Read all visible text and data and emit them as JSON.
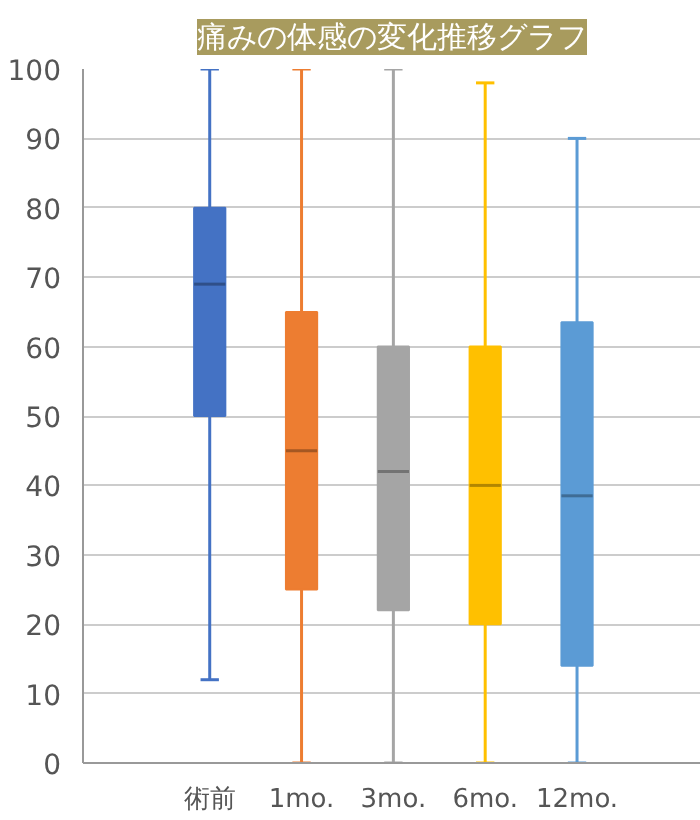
{
  "chart_data": {
    "type": "box",
    "title": "痛みの体感の変化推移グラフ",
    "categories": [
      "術前",
      "1mo.",
      "3mo.",
      "6mo.",
      "12mo."
    ],
    "colors": [
      "#4472c4",
      "#ed7d31",
      "#a5a5a5",
      "#ffc000",
      "#5b9bd5"
    ],
    "boxes": [
      {
        "low": 12,
        "q1": 50,
        "median": 69,
        "q3": 80,
        "high": 100
      },
      {
        "low": 0,
        "q1": 25,
        "median": 45,
        "q3": 65,
        "high": 100
      },
      {
        "low": 0,
        "q1": 22,
        "median": 42,
        "q3": 60,
        "high": 100
      },
      {
        "low": 0,
        "q1": 20,
        "median": 40,
        "q3": 60,
        "high": 98
      },
      {
        "low": 0,
        "q1": 14,
        "median": 38.5,
        "q3": 63.5,
        "high": 90
      }
    ],
    "ylim": [
      0,
      100
    ],
    "yticks": [
      0,
      10,
      20,
      30,
      40,
      50,
      60,
      70,
      80,
      90,
      100
    ],
    "grid": "y"
  }
}
